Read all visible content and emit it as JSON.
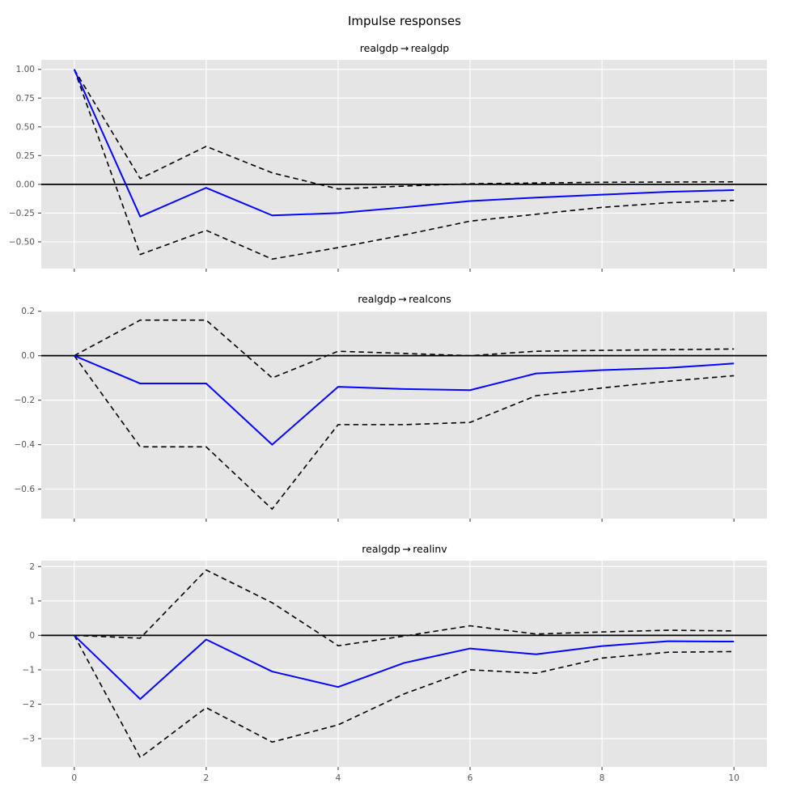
{
  "figure": {
    "title": "Impulse responses"
  },
  "style": {
    "figure_bg": "#ffffff",
    "axes_bg": "#e5e5e5",
    "grid_color": "#ffffff",
    "irf_color": "#0404ff",
    "ci_color": "#000000",
    "zero_line_color": "#000000",
    "tick_color": "#555555",
    "title_color": "#000000"
  },
  "chart_data": [
    {
      "type": "line",
      "title": "realgdp → realgdp",
      "xlabel": "",
      "ylabel": "",
      "x": [
        0,
        1,
        2,
        3,
        4,
        5,
        6,
        7,
        8,
        9,
        10
      ],
      "xlim": [
        -0.5,
        10.5
      ],
      "ylim": [
        -0.7325,
        1.0825
      ],
      "xticks": [
        0,
        2,
        4,
        6,
        8,
        10
      ],
      "xtick_labels": [
        "0",
        "2",
        "4",
        "6",
        "8",
        "10"
      ],
      "show_xtick_labels": false,
      "yticks": [
        1.0,
        0.75,
        0.5,
        0.25,
        0.0,
        -0.25,
        -0.5
      ],
      "ytick_labels": [
        "1.00",
        "0.75",
        "0.50",
        "0.25",
        "0.00",
        "−0.25",
        "−0.50"
      ],
      "grid": true,
      "legend": "none",
      "zero_line": 0,
      "series": [
        {
          "name": "irf",
          "style": "solid-blue",
          "values": [
            1.0,
            -0.28,
            -0.03,
            -0.27,
            -0.25,
            -0.2,
            -0.145,
            -0.115,
            -0.09,
            -0.065,
            -0.05
          ]
        },
        {
          "name": "upper-ci",
          "style": "dashed-black",
          "values": [
            1.0,
            0.05,
            0.33,
            0.1,
            -0.04,
            -0.015,
            0.005,
            0.012,
            0.018,
            0.02,
            0.022
          ]
        },
        {
          "name": "lower-ci",
          "style": "dashed-black",
          "values": [
            1.0,
            -0.61,
            -0.4,
            -0.65,
            -0.55,
            -0.44,
            -0.32,
            -0.26,
            -0.2,
            -0.16,
            -0.14
          ]
        }
      ]
    },
    {
      "type": "line",
      "title": "realgdp → realcons",
      "xlabel": "",
      "ylabel": "",
      "x": [
        0,
        1,
        2,
        3,
        4,
        5,
        6,
        7,
        8,
        9,
        10
      ],
      "xlim": [
        -0.5,
        10.5
      ],
      "ylim": [
        -0.7325,
        0.2025
      ],
      "xticks": [
        0,
        2,
        4,
        6,
        8,
        10
      ],
      "xtick_labels": [
        "0",
        "2",
        "4",
        "6",
        "8",
        "10"
      ],
      "show_xtick_labels": false,
      "yticks": [
        0.2,
        0.0,
        -0.2,
        -0.4,
        -0.6
      ],
      "ytick_labels": [
        "0.2",
        "0.0",
        "−0.2",
        "−0.4",
        "−0.6"
      ],
      "grid": true,
      "legend": "none",
      "zero_line": 0,
      "series": [
        {
          "name": "irf",
          "style": "solid-blue",
          "values": [
            0.0,
            -0.125,
            -0.125,
            -0.4,
            -0.14,
            -0.15,
            -0.155,
            -0.08,
            -0.065,
            -0.055,
            -0.035
          ]
        },
        {
          "name": "upper-ci",
          "style": "dashed-black",
          "values": [
            0.0,
            0.16,
            0.16,
            -0.1,
            0.02,
            0.01,
            0.0,
            0.02,
            0.024,
            0.027,
            0.03
          ]
        },
        {
          "name": "lower-ci",
          "style": "dashed-black",
          "values": [
            0.0,
            -0.41,
            -0.41,
            -0.69,
            -0.31,
            -0.31,
            -0.3,
            -0.18,
            -0.145,
            -0.115,
            -0.09
          ]
        }
      ]
    },
    {
      "type": "line",
      "title": "realgdp → realinv",
      "xlabel": "",
      "ylabel": "",
      "x": [
        0,
        1,
        2,
        3,
        4,
        5,
        6,
        7,
        8,
        9,
        10
      ],
      "xlim": [
        -0.5,
        10.5
      ],
      "ylim": [
        -3.8225,
        2.1725
      ],
      "xticks": [
        0,
        2,
        4,
        6,
        8,
        10
      ],
      "xtick_labels": [
        "0",
        "2",
        "4",
        "6",
        "8",
        "10"
      ],
      "show_xtick_labels": true,
      "yticks": [
        2,
        1,
        0,
        -1,
        -2,
        -3
      ],
      "ytick_labels": [
        "2",
        "1",
        "0",
        "−1",
        "−2",
        "−3"
      ],
      "grid": true,
      "legend": "none",
      "zero_line": 0,
      "series": [
        {
          "name": "irf",
          "style": "solid-blue",
          "values": [
            0.0,
            -1.85,
            -0.12,
            -1.05,
            -1.5,
            -0.8,
            -0.38,
            -0.55,
            -0.31,
            -0.17,
            -0.18
          ]
        },
        {
          "name": "upper-ci",
          "style": "dashed-black",
          "values": [
            0.0,
            -0.08,
            1.9,
            0.95,
            -0.3,
            -0.02,
            0.28,
            0.04,
            0.1,
            0.15,
            0.13
          ]
        },
        {
          "name": "lower-ci",
          "style": "dashed-black",
          "values": [
            0.0,
            -3.55,
            -2.1,
            -3.1,
            -2.6,
            -1.7,
            -1.0,
            -1.1,
            -0.66,
            -0.49,
            -0.47
          ]
        }
      ]
    }
  ]
}
